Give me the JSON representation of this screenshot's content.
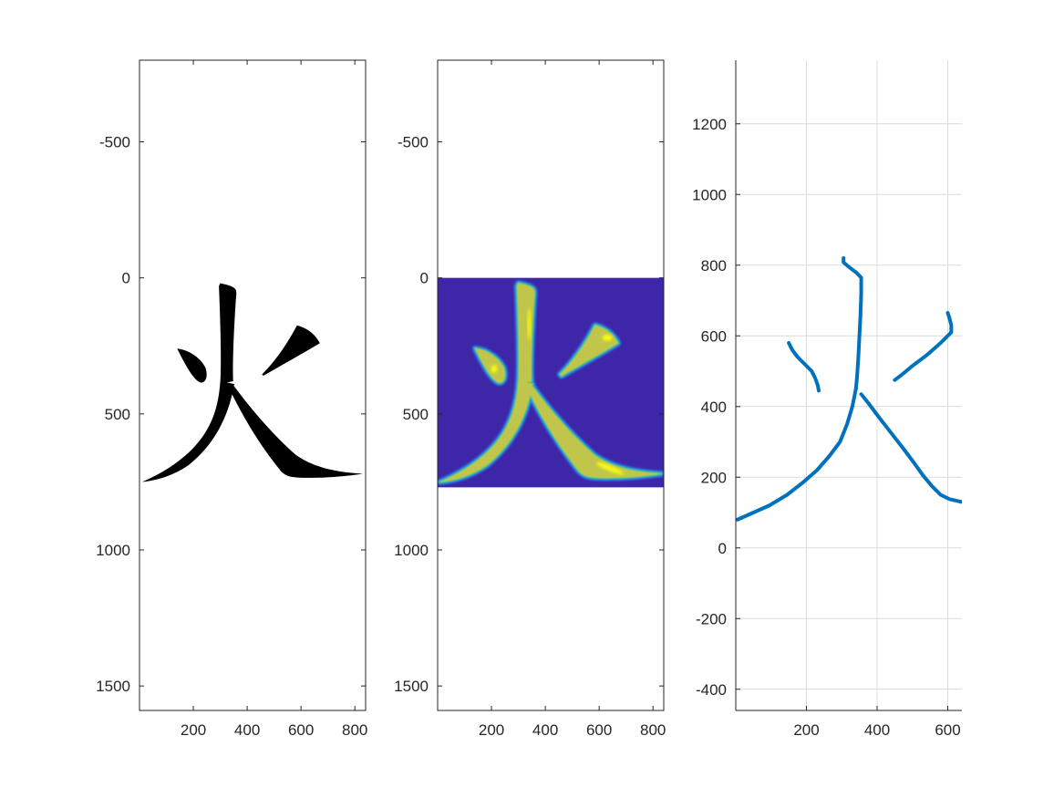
{
  "figure": {
    "background": "#ffffff",
    "axis_color": "#262626",
    "grid_color": "#dcdcdc"
  },
  "chart_data": [
    {
      "type": "image",
      "content": "binary glyph image of the character 火 (black strokes on white)",
      "glyph_color": "#000000",
      "xlim": [
        0,
        840
      ],
      "ylim": [
        -800,
        1590
      ],
      "y_reversed": true,
      "xticks": [
        200,
        400,
        600,
        800
      ],
      "yticks": [
        -500,
        0,
        500,
        1000,
        1500
      ],
      "grid": false,
      "data_extent": {
        "x": [
          0,
          840
        ],
        "y": [
          0,
          770
        ]
      }
    },
    {
      "type": "heatmap",
      "content": "distance-style intensity map of the same 火 glyph (parula colormap)",
      "colormap": [
        "#3e26a8",
        "#2e87f0",
        "#2ab7b7",
        "#82cb61",
        "#f5c13a",
        "#f9fb0e"
      ],
      "background_color": "#3e26a8",
      "xlim": [
        0,
        840
      ],
      "ylim": [
        -800,
        1590
      ],
      "y_reversed": true,
      "xticks": [
        200,
        400,
        600,
        800
      ],
      "yticks": [
        -500,
        0,
        500,
        1000,
        1500
      ],
      "grid": false,
      "data_extent": {
        "x": [
          0,
          840
        ],
        "y": [
          0,
          770
        ]
      }
    },
    {
      "type": "line",
      "content": "skeleton (centerline) strokes of 火",
      "line_color": "#0072bd",
      "xlim": [
        0,
        640
      ],
      "ylim": [
        -460,
        1380
      ],
      "xticks": [
        200,
        400,
        600
      ],
      "yticks": [
        -400,
        -200,
        0,
        200,
        400,
        600,
        800,
        1000,
        1200
      ],
      "grid": true,
      "series": [
        {
          "x": [
            150,
            160,
            175,
            195,
            215,
            225,
            232,
            235
          ],
          "y": [
            580,
            560,
            540,
            520,
            500,
            480,
            460,
            445
          ]
        },
        {
          "x": [
            305,
            305,
            320,
            340,
            355,
            355,
            353,
            350,
            347,
            343,
            340
          ],
          "y": [
            820,
            808,
            795,
            780,
            765,
            720,
            660,
            600,
            540,
            480,
            450
          ]
        },
        {
          "x": [
            340,
            330,
            315,
            295,
            265,
            230,
            190,
            145,
            95,
            50,
            5
          ],
          "y": [
            450,
            400,
            350,
            300,
            260,
            220,
            185,
            150,
            120,
            100,
            80
          ]
        },
        {
          "x": [
            355,
            375,
            405,
            440,
            475,
            505,
            530,
            555,
            580,
            605,
            640
          ],
          "y": [
            435,
            410,
            370,
            325,
            280,
            240,
            205,
            175,
            150,
            138,
            130
          ]
        },
        {
          "x": [
            450,
            470,
            500,
            540,
            580,
            610,
            610,
            605,
            600
          ],
          "y": [
            475,
            490,
            515,
            545,
            580,
            610,
            630,
            650,
            665
          ]
        }
      ]
    }
  ]
}
